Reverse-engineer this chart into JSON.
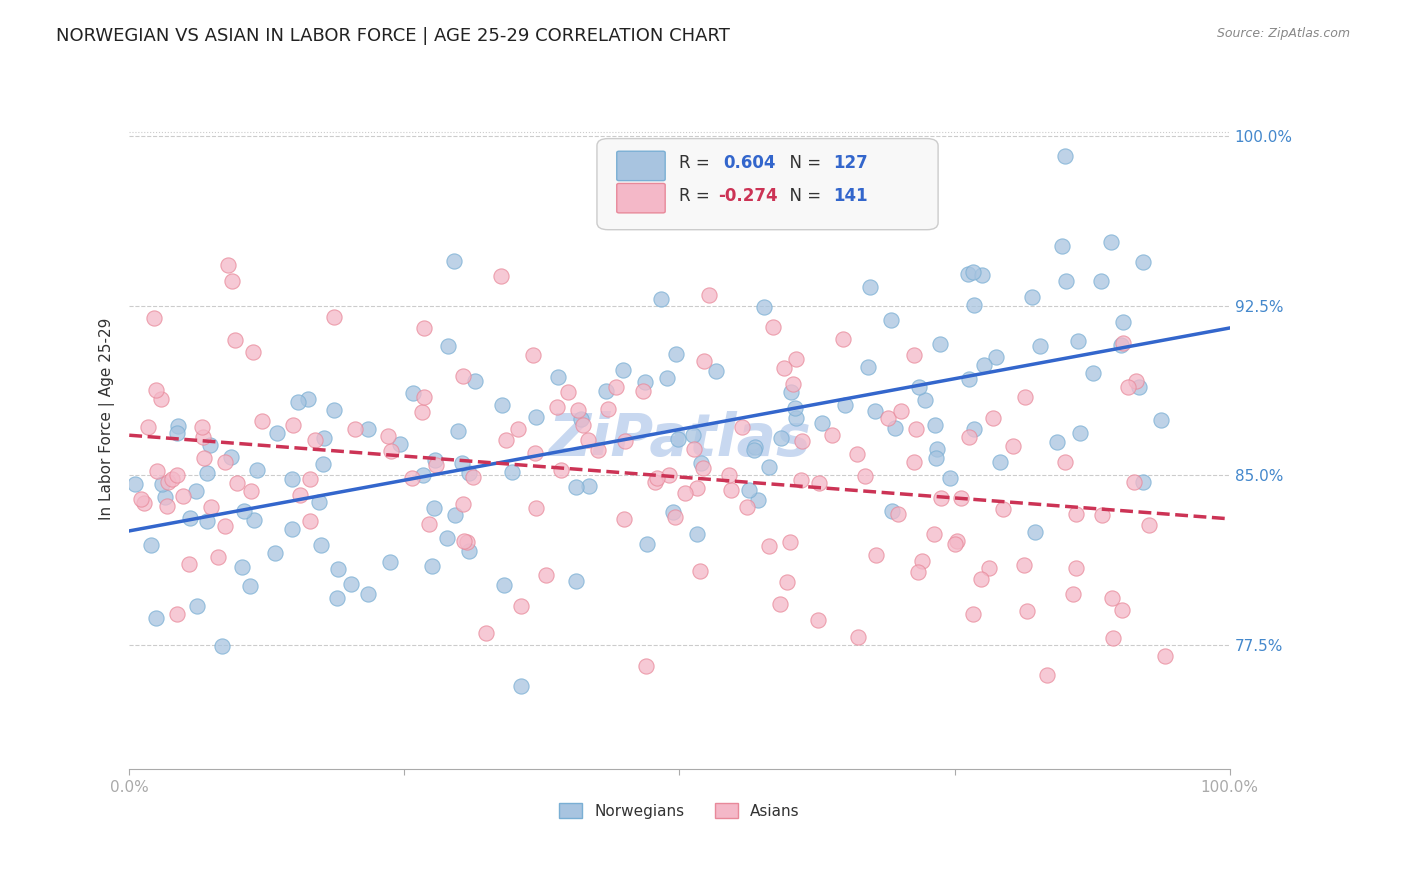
{
  "title": "NORWEGIAN VS ASIAN IN LABOR FORCE | AGE 25-29 CORRELATION CHART",
  "source": "Source: ZipAtlas.com",
  "ylabel": "In Labor Force | Age 25-29",
  "xlabel": "",
  "xlim": [
    0.0,
    1.0
  ],
  "ylim": [
    0.72,
    1.03
  ],
  "yticks": [
    0.775,
    0.85,
    0.925,
    1.0
  ],
  "ytick_labels": [
    "77.5%",
    "85.0%",
    "92.5%",
    "100.0%"
  ],
  "xticks": [
    0.0,
    0.25,
    0.5,
    0.75,
    1.0
  ],
  "xtick_labels": [
    "0.0%",
    "",
    "",
    "",
    "100.0%"
  ],
  "norwegian_color": "#a8c4e0",
  "asian_color": "#f4b8c8",
  "norwegian_edge": "#7aafd4",
  "asian_edge": "#e8899a",
  "trend_norwegian_color": "#3366cc",
  "trend_asian_color": "#cc3355",
  "R_norwegian": 0.604,
  "N_norwegian": 127,
  "R_asian": -0.274,
  "N_asian": 141,
  "background_color": "#ffffff",
  "grid_color": "#cccccc",
  "title_fontsize": 13,
  "axis_label_fontsize": 11,
  "tick_label_color": "#4488cc",
  "tick_label_fontsize": 11,
  "legend_fontsize": 12,
  "watermark_text": "ZiPatlas",
  "watermark_color": "#c8d8f0",
  "watermark_fontsize": 42
}
